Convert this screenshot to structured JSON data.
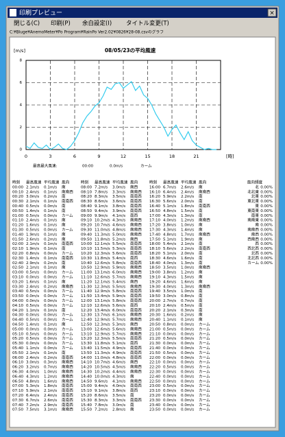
{
  "window": {
    "title": "印刷プレビュー",
    "close": "×",
    "menu": [
      "閉じる(C)",
      "印刷(P)",
      "余白設定(I)",
      "タイトル変更(T)"
    ],
    "path": "C:¥Bluge¥AnemoMeter¥Po Program¥RainPo Ver2.02¥0826¥28-08.csvのグラフ"
  },
  "chart_data": {
    "type": "line",
    "title": "08/05/23の平均風速",
    "y_label": "[m/s]",
    "x_label": "[時]",
    "color": "#33ccee",
    "grid": true,
    "x": [
      0,
      0.5,
      1,
      1.5,
      2,
      2.5,
      3,
      3.5,
      4,
      4.5,
      5,
      5.5,
      6,
      6.5,
      7,
      7.5,
      8,
      8.5,
      9,
      9.5,
      10,
      10.5,
      11,
      11.5,
      12,
      12.5,
      13,
      13.5,
      14,
      14.5,
      15,
      15.5,
      16,
      16.5,
      17,
      17.5,
      18,
      18.5,
      19,
      19.5,
      20,
      20.5,
      21,
      21.5,
      22,
      22.5,
      23,
      23.5
    ],
    "values": [
      0.3,
      0.1,
      0.6,
      0.2,
      0.1,
      0.4,
      0.0,
      0.2,
      0.5,
      0.1,
      0.0,
      0.3,
      0.8,
      1.5,
      2.4,
      3.0,
      3.4,
      3.9,
      4.2,
      4.8,
      5.6,
      5.4,
      5.9,
      6.0,
      5.5,
      5.8,
      6.1,
      5.3,
      5.7,
      4.9,
      4.6,
      4.0,
      3.2,
      2.6,
      2.0,
      1.2,
      1.8,
      2.2,
      1.5,
      0.9,
      1.6,
      0.8,
      0.4,
      0.2,
      0.0,
      0.1,
      0.0,
      0.0
    ],
    "xlim": [
      0,
      24
    ],
    "xticks": [
      0,
      3,
      6,
      9,
      12,
      15,
      18,
      21
    ],
    "ylim": [
      0,
      8
    ],
    "yticks": [
      0,
      2,
      4,
      6,
      8
    ]
  },
  "max_wind": [
    "最高最大風速:",
    "00:00",
    "0.0m/s",
    "カーム"
  ],
  "table": {
    "header": [
      "時刻",
      "最高風速",
      "平均風速",
      "風向"
    ],
    "blocks": [
      [
        [
          "00:00",
          "2.1m/s",
          "0.1m/s",
          "南"
        ],
        [
          "00:10",
          "2.4m/s",
          "0.1m/s",
          "南南西"
        ],
        [
          "00:20",
          "3.0m/s",
          "0.2m/s",
          "南"
        ],
        [
          "00:30",
          "2.1m/s",
          "0.1m/s",
          "南南西"
        ],
        [
          "00:40",
          "0.5m/s",
          "0.0m/s",
          "南"
        ],
        [
          "00:50",
          "1.4m/s",
          "0.1m/s",
          "南"
        ],
        [
          "01:00",
          "0.5m/s",
          "0.0m/s",
          "カーム"
        ],
        [
          "01:10",
          "2.4m/s",
          "0.1m/s",
          "南"
        ],
        [
          "01:20",
          "1.6m/s",
          "0.1m/s",
          "南"
        ],
        [
          "01:30",
          "0.5m/s",
          "0.0m/s",
          "カーム"
        ],
        [
          "01:40",
          "1.9m/s",
          "0.1m/s",
          "南"
        ],
        [
          "01:50",
          "2.6m/s",
          "0.2m/s",
          "南"
        ],
        [
          "02:00",
          "2.1m/s",
          "0.1m/s",
          "南南西"
        ],
        [
          "02:10",
          "1.9m/s",
          "0.1m/s",
          "南"
        ],
        [
          "02:20",
          "0.8m/s",
          "0.0m/s",
          "カーム"
        ],
        [
          "02:30",
          "1.4m/s",
          "0.1m/s",
          "南南西"
        ],
        [
          "02:40",
          "2.9m/s",
          "0.2m/s",
          "南"
        ],
        [
          "02:50",
          "2.1m/s",
          "0.1m/s",
          "南"
        ],
        [
          "03:00",
          "0.5m/s",
          "0.0m/s",
          "カーム"
        ],
        [
          "03:10",
          "0.0m/s",
          "0.0m/s",
          "カーム"
        ],
        [
          "03:20",
          "1.6m/s",
          "0.1m/s",
          "南"
        ],
        [
          "03:30",
          "2.4m/s",
          "0.2m/s",
          "南南西"
        ],
        [
          "03:40",
          "0.5m/s",
          "0.0m/s",
          "カーム"
        ],
        [
          "03:50",
          "0.0m/s",
          "0.0m/s",
          "カーム"
        ],
        [
          "04:00",
          "0.0m/s",
          "0.0m/s",
          "カーム"
        ],
        [
          "04:10",
          "0.5m/s",
          "0.0m/s",
          "カーム"
        ],
        [
          "04:20",
          "1.1m/s",
          "0.1m/s",
          "南"
        ],
        [
          "04:30",
          "0.0m/s",
          "0.0m/s",
          "カーム"
        ],
        [
          "04:40",
          "0.5m/s",
          "0.0m/s",
          "カーム"
        ],
        [
          "04:50",
          "1.4m/s",
          "0.1m/s",
          "南"
        ],
        [
          "05:00",
          "0.0m/s",
          "0.0m/s",
          "カーム"
        ],
        [
          "05:10",
          "0.5m/s",
          "0.0m/s",
          "カーム"
        ],
        [
          "05:20",
          "0.5m/s",
          "0.0m/s",
          "カーム"
        ],
        [
          "05:30",
          "0.0m/s",
          "0.0m/s",
          "カーム"
        ],
        [
          "05:40",
          "1.1m/s",
          "0.0m/s",
          "カーム"
        ],
        [
          "05:50",
          "2.1m/s",
          "0.1m/s",
          "南"
        ],
        [
          "06:00",
          "2.4m/s",
          "0.2m/s",
          "南南西"
        ],
        [
          "06:10",
          "3.0m/s",
          "0.3m/s",
          "南南西"
        ],
        [
          "06:20",
          "3.2m/s",
          "0.7m/s",
          "南南西"
        ],
        [
          "06:30",
          "4.0m/s",
          "1.0m/s",
          "南南西"
        ],
        [
          "06:40",
          "4.3m/s",
          "1.2m/s",
          "南南西"
        ],
        [
          "06:50",
          "4.8m/s",
          "1.6m/s",
          "南南西"
        ],
        [
          "07:00",
          "5.3m/s",
          "1.8m/s",
          "南南西"
        ],
        [
          "07:10",
          "5.9m/s",
          "2.1m/s",
          "南南西"
        ],
        [
          "07:20",
          "6.4m/s",
          "2.4m/s",
          "南南西"
        ],
        [
          "07:30",
          "6.7m/s",
          "2.6m/s",
          "南南西"
        ],
        [
          "07:40",
          "7.2m/s",
          "2.9m/s",
          "南南西"
        ],
        [
          "07:50",
          "7.5m/s",
          "3.1m/s",
          "南南西"
        ]
      ],
      [
        [
          "08:00",
          "7.2m/s",
          "3.0m/s",
          "南西"
        ],
        [
          "08:10",
          "7.8m/s",
          "3.3m/s",
          "南南西"
        ],
        [
          "08:20",
          "8.3m/s",
          "3.5m/s",
          "南南西"
        ],
        [
          "08:30",
          "8.6m/s",
          "3.6m/s",
          "南南西"
        ],
        [
          "08:40",
          "9.1m/s",
          "3.8m/s",
          "南南西"
        ],
        [
          "08:50",
          "9.4m/s",
          "3.9m/s",
          "南南西"
        ],
        [
          "09:00",
          "9.9m/s",
          "4.1m/s",
          "南西"
        ],
        [
          "09:10",
          "10.2m/s",
          "4.3m/s",
          "南南西"
        ],
        [
          "09:20",
          "10.7m/s",
          "4.6m/s",
          "南南西"
        ],
        [
          "09:30",
          "11.0m/s",
          "4.8m/s",
          "南南西"
        ],
        [
          "09:40",
          "11.3m/s",
          "5.0m/s",
          "南南西"
        ],
        [
          "09:50",
          "11.8m/s",
          "5.2m/s",
          "南西"
        ],
        [
          "10:00",
          "12.1m/s",
          "5.5m/s",
          "南南西"
        ],
        [
          "10:10",
          "11.5m/s",
          "5.3m/s",
          "南南西"
        ],
        [
          "10:20",
          "12.3m/s",
          "5.6m/s",
          "南南西"
        ],
        [
          "10:30",
          "11.8m/s",
          "5.4m/s",
          "南西"
        ],
        [
          "10:40",
          "12.6m/s",
          "5.8m/s",
          "南南西"
        ],
        [
          "10:50",
          "12.9m/s",
          "5.9m/s",
          "南南西"
        ],
        [
          "11:00",
          "13.1m/s",
          "6.0m/s",
          "南南西"
        ],
        [
          "11:10",
          "12.6m/s",
          "5.7m/s",
          "南南西"
        ],
        [
          "11:20",
          "12.1m/s",
          "5.4m/s",
          "南西"
        ],
        [
          "11:30",
          "12.3m/s",
          "5.5m/s",
          "南南西"
        ],
        [
          "11:40",
          "12.9m/s",
          "5.8m/s",
          "南南西"
        ],
        [
          "11:50",
          "13.4m/s",
          "5.9m/s",
          "南南西"
        ],
        [
          "12:00",
          "13.1m/s",
          "5.8m/s",
          "南南西"
        ],
        [
          "12:10",
          "12.6m/s",
          "5.6m/s",
          "南西"
        ],
        [
          "12:20",
          "13.4m/s",
          "6.0m/s",
          "南南西"
        ],
        [
          "12:30",
          "13.7m/s",
          "6.1m/s",
          "南南西"
        ],
        [
          "12:40",
          "12.9m/s",
          "5.7m/s",
          "南南西"
        ],
        [
          "12:50",
          "12.3m/s",
          "5.3m/s",
          "南西"
        ],
        [
          "13:00",
          "12.6m/s",
          "5.6m/s",
          "南南西"
        ],
        [
          "13:10",
          "12.9m/s",
          "5.7m/s",
          "南南西"
        ],
        [
          "13:20",
          "12.3m/s",
          "5.5m/s",
          "南南西"
        ],
        [
          "13:30",
          "11.8m/s",
          "5.1m/s",
          "南西"
        ],
        [
          "13:40",
          "11.5m/s",
          "4.9m/s",
          "南南西"
        ],
        [
          "13:50",
          "11.3m/s",
          "4.9m/s",
          "南南西"
        ],
        [
          "14:00",
          "11.0m/s",
          "4.8m/s",
          "南南西"
        ],
        [
          "14:10",
          "10.7m/s",
          "4.6m/s",
          "南西"
        ],
        [
          "14:20",
          "10.5m/s",
          "4.5m/s",
          "南南西"
        ],
        [
          "14:30",
          "10.2m/s",
          "4.4m/s",
          "南南西"
        ],
        [
          "14:40",
          "10.0m/s",
          "4.3m/s",
          "南"
        ],
        [
          "14:50",
          "9.6m/s",
          "4.1m/s",
          "南南西"
        ],
        [
          "15:00",
          "9.4m/s",
          "4.0m/s",
          "南南西"
        ],
        [
          "15:10",
          "9.1m/s",
          "3.8m/s",
          "南西"
        ],
        [
          "15:20",
          "8.6m/s",
          "3.5m/s",
          "南"
        ],
        [
          "15:30",
          "8.3m/s",
          "3.3m/s",
          "南南西"
        ],
        [
          "15:40",
          "7.8m/s",
          "3.0m/s",
          "南"
        ],
        [
          "15:50",
          "7.2m/s",
          "2.8m/s",
          "南"
        ]
      ],
      [
        [
          "16:00",
          "6.7m/s",
          "2.6m/s",
          "南"
        ],
        [
          "16:10",
          "6.4m/s",
          "2.4m/s",
          "南南西"
        ],
        [
          "16:20",
          "5.9m/s",
          "2.2m/s",
          "南"
        ],
        [
          "16:30",
          "5.6m/s",
          "2.0m/s",
          "南"
        ],
        [
          "16:40",
          "5.1m/s",
          "1.8m/s",
          "南南西"
        ],
        [
          "16:50",
          "4.8m/s",
          "1.5m/s",
          "南"
        ],
        [
          "17:00",
          "4.3m/s",
          "1.3m/s",
          "南"
        ],
        [
          "17:10",
          "4.0m/s",
          "1.2m/s",
          "南南西"
        ],
        [
          "17:20",
          "3.8m/s",
          "1.0m/s",
          "南"
        ],
        [
          "17:30",
          "4.3m/s",
          "1.4m/s",
          "南"
        ],
        [
          "17:40",
          "4.8m/s",
          "1.7m/s",
          "南南西"
        ],
        [
          "17:50",
          "5.1m/s",
          "1.9m/s",
          "南"
        ],
        [
          "18:00",
          "5.4m/s",
          "2.1m/s",
          "南"
        ],
        [
          "18:10",
          "5.6m/s",
          "2.2m/s",
          "南南西"
        ],
        [
          "18:20",
          "5.1m/s",
          "2.0m/s",
          "南"
        ],
        [
          "18:30",
          "4.6m/s",
          "1.6m/s",
          "南"
        ],
        [
          "18:40",
          "4.0m/s",
          "1.3m/s",
          "南"
        ],
        [
          "18:50",
          "3.5m/s",
          "1.0m/s",
          "南南西"
        ],
        [
          "19:00",
          "3.8m/s",
          "1.2m/s",
          "南"
        ],
        [
          "19:10",
          "4.3m/s",
          "1.5m/s",
          "南"
        ],
        [
          "19:20",
          "4.6m/s",
          "1.6m/s",
          "南"
        ],
        [
          "19:30",
          "4.0m/s",
          "1.3m/s",
          "南南西"
        ],
        [
          "19:40",
          "3.5m/s",
          "1.0m/s",
          "南"
        ],
        [
          "19:50",
          "3.0m/s",
          "0.8m/s",
          "南"
        ],
        [
          "20:00",
          "2.7m/s",
          "0.7m/s",
          "南"
        ],
        [
          "20:10",
          "2.4m/s",
          "0.5m/s",
          "南"
        ],
        [
          "20:20",
          "2.1m/s",
          "0.3m/s",
          "南"
        ],
        [
          "20:30",
          "1.6m/s",
          "0.2m/s",
          "南"
        ],
        [
          "20:40",
          "1.1m/s",
          "0.1m/s",
          "南"
        ],
        [
          "20:50",
          "0.8m/s",
          "0.0m/s",
          "カーム"
        ],
        [
          "21:00",
          "0.5m/s",
          "0.0m/s",
          "カーム"
        ],
        [
          "21:10",
          "0.0m/s",
          "0.0m/s",
          "カーム"
        ],
        [
          "21:20",
          "0.5m/s",
          "0.0m/s",
          "カーム"
        ],
        [
          "21:30",
          "0.0m/s",
          "0.0m/s",
          "カーム"
        ],
        [
          "21:40",
          "0.0m/s",
          "0.0m/s",
          "カーム"
        ],
        [
          "21:50",
          "0.5m/s",
          "0.0m/s",
          "カーム"
        ],
        [
          "22:00",
          "0.0m/s",
          "0.0m/s",
          "カーム"
        ],
        [
          "22:10",
          "0.0m/s",
          "0.0m/s",
          "カーム"
        ],
        [
          "22:20",
          "0.5m/s",
          "0.0m/s",
          "カーム"
        ],
        [
          "22:30",
          "0.0m/s",
          "0.0m/s",
          "カーム"
        ],
        [
          "22:40",
          "0.0m/s",
          "0.0m/s",
          "カーム"
        ],
        [
          "22:50",
          "0.0m/s",
          "0.0m/s",
          "カーム"
        ],
        [
          "23:00",
          "0.5m/s",
          "0.0m/s",
          "カーム"
        ],
        [
          "23:10",
          "0.0m/s",
          "0.0m/s",
          "カーム"
        ],
        [
          "23:20",
          "0.0m/s",
          "0.0m/s",
          "カーム"
        ],
        [
          "23:30",
          "0.0m/s",
          "0.0m/s",
          "カーム"
        ],
        [
          "23:40",
          "0.0m/s",
          "0.0m/s",
          "カーム"
        ],
        [
          "23:50",
          "0.0m/s",
          "0.0m/s",
          "カーム"
        ]
      ]
    ]
  },
  "frequency": {
    "title": "風向頻度",
    "rows": [
      [
        "北",
        "0.00%"
      ],
      [
        "北北東",
        "0.00%"
      ],
      [
        "北東",
        "0.00%"
      ],
      [
        "東北東",
        "0.00%"
      ],
      [
        "東",
        "0.00%"
      ],
      [
        "東南東",
        "0.00%"
      ],
      [
        "南東",
        "0.00%"
      ],
      [
        "南南東",
        "0.00%"
      ],
      [
        "南",
        "0.00%"
      ],
      [
        "南南西",
        "0.00%"
      ],
      [
        "南西",
        "0.00%"
      ],
      [
        "西南西",
        "0.00%"
      ],
      [
        "西",
        "0.00%"
      ],
      [
        "西北西",
        "0.00%"
      ],
      [
        "北西",
        "0.00%"
      ],
      [
        "北北西",
        "0.00%"
      ],
      [
        "カーム",
        "0.00%"
      ]
    ]
  }
}
